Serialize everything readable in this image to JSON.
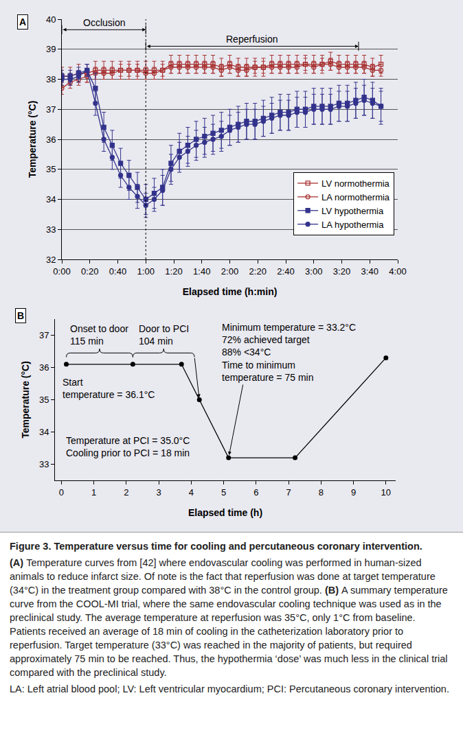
{
  "chart_data": [
    {
      "type": "line",
      "panel": "A",
      "x_label": "Elapsed time (h:min)",
      "y_label": "Temperature (°C)",
      "x": [
        0,
        6,
        12,
        18,
        24,
        30,
        36,
        42,
        48,
        54,
        60,
        66,
        72,
        78,
        84,
        90,
        96,
        102,
        108,
        114,
        120,
        126,
        132,
        138,
        144,
        150,
        156,
        162,
        168,
        174,
        180,
        186,
        192,
        198,
        204,
        210,
        216,
        222,
        228
      ],
      "series": [
        {
          "name": "LV normothermia",
          "color": "#a83232",
          "marker": "square-open",
          "line_style": "solid",
          "values": [
            38.1,
            38.1,
            38.2,
            38.2,
            38.3,
            38.3,
            38.3,
            38.3,
            38.3,
            38.3,
            38.3,
            38.3,
            38.3,
            38.5,
            38.5,
            38.5,
            38.5,
            38.5,
            38.5,
            38.4,
            38.5,
            38.4,
            38.4,
            38.4,
            38.4,
            38.5,
            38.5,
            38.5,
            38.5,
            38.5,
            38.5,
            38.5,
            38.6,
            38.5,
            38.5,
            38.5,
            38.5,
            38.4,
            38.5
          ],
          "error": [
            0.3,
            0.3,
            0.3,
            0.3,
            0.3,
            0.3,
            0.3,
            0.3,
            0.3,
            0.3,
            0.3,
            0.3,
            0.3,
            0.3,
            0.3,
            0.3,
            0.3,
            0.3,
            0.3,
            0.3,
            0.3,
            0.3,
            0.3,
            0.3,
            0.3,
            0.3,
            0.3,
            0.3,
            0.3,
            0.3,
            0.3,
            0.3,
            0.3,
            0.3,
            0.3,
            0.3,
            0.3,
            0.3,
            0.3
          ]
        },
        {
          "name": "LA normothermia",
          "color": "#a83232",
          "marker": "circle-open",
          "line_style": "solid",
          "values": [
            37.7,
            37.9,
            38.0,
            38.1,
            38.2,
            38.2,
            38.2,
            38.3,
            38.3,
            38.3,
            38.2,
            38.2,
            38.3,
            38.4,
            38.4,
            38.4,
            38.4,
            38.4,
            38.4,
            38.3,
            38.4,
            38.3,
            38.3,
            38.4,
            38.4,
            38.4,
            38.4,
            38.4,
            38.4,
            38.5,
            38.4,
            38.5,
            38.5,
            38.4,
            38.4,
            38.4,
            38.4,
            38.3,
            38.3
          ],
          "error": [
            0.2,
            0.2,
            0.2,
            0.2,
            0.2,
            0.2,
            0.2,
            0.2,
            0.2,
            0.2,
            0.2,
            0.2,
            0.2,
            0.2,
            0.2,
            0.2,
            0.2,
            0.2,
            0.2,
            0.2,
            0.2,
            0.2,
            0.2,
            0.2,
            0.2,
            0.2,
            0.2,
            0.2,
            0.2,
            0.2,
            0.2,
            0.2,
            0.2,
            0.2,
            0.2,
            0.2,
            0.2,
            0.2,
            0.2
          ]
        },
        {
          "name": "LV hypothermia",
          "color": "#33338c",
          "marker": "square",
          "line_style": "solid",
          "values": [
            38.1,
            38.1,
            38.2,
            38.3,
            37.7,
            36.4,
            35.8,
            35.2,
            34.8,
            34.4,
            34.0,
            34.2,
            34.4,
            35.2,
            35.6,
            35.8,
            36.0,
            36.1,
            36.2,
            36.3,
            36.4,
            36.5,
            36.6,
            36.6,
            36.7,
            36.8,
            36.9,
            36.9,
            37.0,
            37.0,
            37.1,
            37.1,
            37.1,
            37.2,
            37.2,
            37.3,
            37.4,
            37.3,
            37.1
          ],
          "error": [
            0.2,
            0.2,
            0.2,
            0.2,
            0.5,
            0.5,
            0.5,
            0.5,
            0.5,
            0.5,
            0.5,
            0.5,
            0.6,
            0.6,
            0.6,
            0.6,
            0.6,
            0.6,
            0.6,
            0.6,
            0.6,
            0.6,
            0.6,
            0.6,
            0.6,
            0.6,
            0.6,
            0.6,
            0.6,
            0.6,
            0.6,
            0.6,
            0.6,
            0.6,
            0.6,
            0.6,
            0.6,
            0.6,
            0.6
          ]
        },
        {
          "name": "LA hypothermia",
          "color": "#33338c",
          "marker": "circle",
          "line_style": "solid",
          "values": [
            38.0,
            38.0,
            38.1,
            38.3,
            37.2,
            36.0,
            35.4,
            34.8,
            34.4,
            34.1,
            33.8,
            34.0,
            34.3,
            35.0,
            35.4,
            35.6,
            35.8,
            35.9,
            36.0,
            36.1,
            36.3,
            36.4,
            36.5,
            36.5,
            36.6,
            36.7,
            36.8,
            36.8,
            36.9,
            36.9,
            37.0,
            37.0,
            37.0,
            37.1,
            37.1,
            37.2,
            37.3,
            37.2,
            37.1
          ],
          "error": [
            0.2,
            0.2,
            0.2,
            0.2,
            0.4,
            0.4,
            0.4,
            0.4,
            0.4,
            0.4,
            0.4,
            0.4,
            0.5,
            0.5,
            0.5,
            0.5,
            0.5,
            0.5,
            0.5,
            0.5,
            0.5,
            0.5,
            0.5,
            0.5,
            0.5,
            0.5,
            0.5,
            0.5,
            0.5,
            0.5,
            0.5,
            0.5,
            0.5,
            0.5,
            0.5,
            0.5,
            0.5,
            0.5,
            0.5
          ]
        }
      ],
      "xlim": [
        0,
        240
      ],
      "xticks": [
        {
          "value": 0,
          "label": "0:00"
        },
        {
          "value": 20,
          "label": "0:20"
        },
        {
          "value": 40,
          "label": "0:40"
        },
        {
          "value": 60,
          "label": "1:00"
        },
        {
          "value": 80,
          "label": "1:20"
        },
        {
          "value": 100,
          "label": "1:40"
        },
        {
          "value": 120,
          "label": "2:00"
        },
        {
          "value": 140,
          "label": "2:20"
        },
        {
          "value": 160,
          "label": "2:40"
        },
        {
          "value": 180,
          "label": "3:00"
        },
        {
          "value": 200,
          "label": "3:20"
        },
        {
          "value": 220,
          "label": "3:40"
        },
        {
          "value": 240,
          "label": "4:00"
        }
      ],
      "ylim": [
        32,
        40
      ],
      "yticks": [
        32,
        33,
        34,
        35,
        36,
        37,
        38,
        39,
        40
      ],
      "grid": true,
      "legend": "lower right",
      "annotations": [
        {
          "text": "Occlusion",
          "x_start": 0,
          "x_end": 60
        },
        {
          "text": "Reperfusion",
          "x_start": 60,
          "x_end": 212
        }
      ],
      "reference_lines": [
        {
          "x": 60,
          "line_style": "dotted"
        }
      ]
    },
    {
      "type": "line",
      "panel": "B",
      "x_label": "Elapsed time (h)",
      "y_label": "Temperature (°C)",
      "x": [
        0.15,
        2.2,
        3.7,
        4.25,
        5.15,
        7.2,
        10.0
      ],
      "values": [
        36.1,
        36.1,
        36.1,
        35.0,
        33.2,
        33.2,
        36.3
      ],
      "color": "#000000",
      "marker": "circle",
      "line_style": "solid",
      "xlim": [
        -0.2,
        10.3
      ],
      "xticks": [
        0,
        1,
        2,
        3,
        4,
        5,
        6,
        7,
        8,
        9,
        10
      ],
      "ylim": [
        32.5,
        37.5
      ],
      "yticks": [
        33,
        34,
        35,
        36,
        37
      ],
      "grid": false,
      "annotations": [
        {
          "text": "Onset to door\n115 min",
          "x_start": 0.15,
          "x_end": 2.2
        },
        {
          "text": "Door to PCI\n104 min",
          "x_start": 2.2,
          "x_end": 4.1,
          "x": 4.25,
          "y": 35.0
        },
        {
          "text": "Start\ntemperature = 36.1°C"
        },
        {
          "text": "Temperature at PCI = 35.0°C\nCooling prior to PCI = 18 min"
        },
        {
          "text": "Minimum temperature = 33.2°C\n72% achieved target\n88% <34°C\nTime to minimum\ntemperature = 75 min",
          "x": 5.15,
          "y": 33.2
        }
      ]
    }
  ],
  "caption": {
    "title": "Figure 3. Temperature versus time for cooling and percutaneous coronary intervention.",
    "parts": [
      {
        "label": "(A)",
        "text": "Temperature curves from [42] where endovascular cooling was performed in human-sized animals to reduce infarct size. Of note is the fact that reperfusion was done at target temperature (34°C) in the treatment group compared with 38°C in the control group."
      },
      {
        "label": "(B)",
        "text": "A summary temperature curve from the COOL-MI trial, where the same endovascular cooling technique was used as in the preclinical study. The average temperature at reperfusion was 35°C, only 1°C from baseline. Patients received an average of 18 min of cooling in the catheterization laboratory prior to reperfusion. Target temperature (33°C) was reached in the majority of patients, but required approximately 75 min to be reached. Thus, the hypothermia ‘dose’ was much less in the clinical trial compared with the preclinical study."
      }
    ],
    "abbreviations": "LA: Left atrial blood pool; LV: Left ventricular myocardium; PCI: Percutaneous coronary intervention."
  }
}
